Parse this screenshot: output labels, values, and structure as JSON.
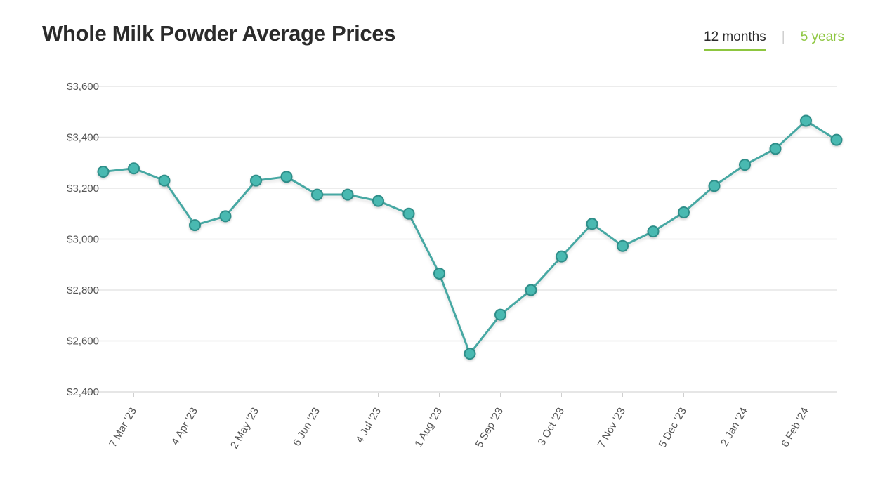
{
  "header": {
    "title": "Whole Milk Powder Average Prices"
  },
  "range_tabs": [
    {
      "label": "12 months",
      "active": true
    },
    {
      "label": "5 years",
      "active": false
    }
  ],
  "colors": {
    "line": "#46a8a3",
    "point_fill": "#49b9b1",
    "point_stroke": "#2e8e89",
    "grid": "#e6e6e6",
    "accent": "#8dc63f"
  },
  "chart_data": {
    "type": "line",
    "title": "Whole Milk Powder Average Prices",
    "xlabel": "",
    "ylabel": "",
    "ylim": [
      2400,
      3600
    ],
    "y_ticks": [
      2400,
      2600,
      2800,
      3000,
      3200,
      3400,
      3600
    ],
    "y_tick_labels": [
      "$2,400",
      "$2,600",
      "$2,800",
      "$3,000",
      "$3,200",
      "$3,400",
      "$3,600"
    ],
    "x_tick_labels": [
      "7 Mar '23",
      "4 Apr '23",
      "2 May '23",
      "6 Jun '23",
      "4 Jul '23",
      "1 Aug '23",
      "5 Sep '23",
      "3 Oct '23",
      "7 Nov '23",
      "5 Dec '23",
      "2 Jan '24",
      "6 Feb '24"
    ],
    "x_tick_label_indices": [
      1,
      3,
      5,
      7,
      9,
      11,
      13,
      15,
      17,
      19,
      21,
      23
    ],
    "grid": true,
    "series": [
      {
        "values": [
          3265,
          3278,
          3230,
          3055,
          3090,
          3230,
          3245,
          3175,
          3175,
          3150,
          3100,
          2865,
          2550,
          2703,
          2800,
          2932,
          3060,
          2973,
          3030,
          3105,
          3209,
          3292,
          3355,
          3465,
          3390
        ]
      }
    ]
  }
}
